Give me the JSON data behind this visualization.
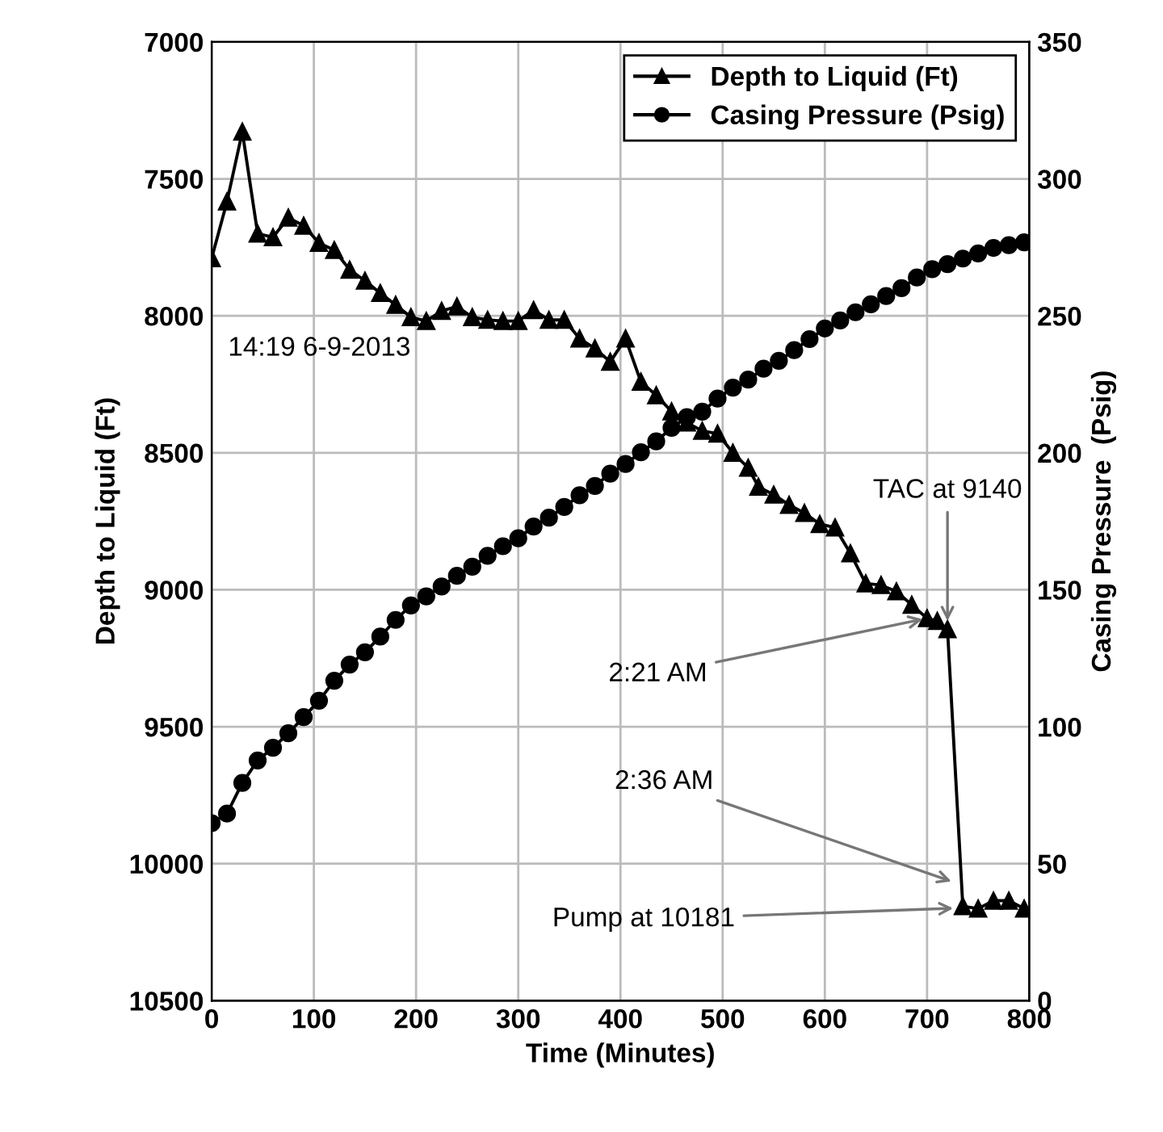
{
  "chart_data": {
    "type": "line",
    "xlabel": "Time (Minutes)",
    "ylabel": "Depth to Liquid (Ft)",
    "y2label": "Casing Pressure  (Psig)",
    "xlim": [
      0,
      800
    ],
    "xticks": [
      0,
      100,
      200,
      300,
      400,
      500,
      600,
      700,
      800
    ],
    "ylim": [
      10500,
      7000
    ],
    "yticks": [
      7000,
      7500,
      8000,
      8500,
      9000,
      9500,
      10000,
      10500
    ],
    "y2lim": [
      0,
      350
    ],
    "y2ticks": [
      0,
      50,
      100,
      150,
      200,
      250,
      300,
      350
    ],
    "grid": true,
    "legend": "top right",
    "line_style": "solid",
    "series": [
      {
        "name": "Depth to Liquid (Ft)",
        "color": "#000000",
        "marker": "triangle",
        "x": [
          0,
          15,
          30,
          45,
          60,
          75,
          90,
          105,
          120,
          135,
          150,
          165,
          180,
          195,
          210,
          225,
          240,
          255,
          270,
          285,
          300,
          315,
          330,
          345,
          360,
          375,
          390,
          405,
          420,
          435,
          450,
          465,
          480,
          495,
          510,
          525,
          535,
          550,
          565,
          580,
          595,
          610,
          625,
          640,
          655,
          670,
          685,
          700,
          710,
          720,
          735,
          750,
          765,
          780,
          795
        ],
        "values": [
          7790,
          7583,
          7328,
          7700,
          7713,
          7642,
          7671,
          7734,
          7760,
          7832,
          7872,
          7917,
          7960,
          8005,
          8019,
          7982,
          7966,
          8005,
          8015,
          8019,
          8019,
          7979,
          8015,
          8015,
          8083,
          8119,
          8168,
          8083,
          8241,
          8290,
          8349,
          8390,
          8420,
          8430,
          8500,
          8555,
          8624,
          8653,
          8690,
          8720,
          8760,
          8773,
          8867,
          8977,
          8983,
          9006,
          9055,
          9104,
          9114,
          9144,
          10155,
          10164,
          10135,
          10135,
          10164
        ]
      },
      {
        "name": "Casing Pressure (Psig)",
        "color": "#000000",
        "marker": "circle",
        "axis": "y2",
        "x": [
          0,
          15,
          30,
          45,
          60,
          75,
          90,
          105,
          120,
          135,
          150,
          165,
          180,
          195,
          210,
          225,
          240,
          255,
          270,
          285,
          300,
          315,
          330,
          345,
          360,
          375,
          390,
          405,
          420,
          435,
          450,
          465,
          480,
          495,
          510,
          525,
          540,
          555,
          570,
          585,
          600,
          615,
          630,
          645,
          660,
          675,
          690,
          705,
          720,
          735,
          750,
          765,
          780,
          795
        ],
        "values": [
          64.8,
          68.3,
          79.5,
          87.7,
          92.3,
          97.6,
          103.5,
          109.5,
          116.8,
          122.7,
          127.2,
          132.9,
          139,
          144.3,
          147.6,
          151.2,
          155.1,
          158.4,
          162.4,
          165.9,
          168.8,
          173.1,
          176.3,
          180.2,
          184.5,
          187.9,
          192.4,
          195.9,
          200.2,
          204.2,
          209.1,
          213,
          215,
          219.8,
          223.8,
          226.7,
          230.7,
          233.6,
          237.5,
          241.5,
          245.4,
          248.3,
          251.3,
          254.2,
          257.2,
          260.1,
          264,
          267,
          268.9,
          270.9,
          272.8,
          274.8,
          275.8,
          276.8
        ]
      }
    ],
    "annotations": [
      "14:19 6-9-2013",
      {
        "text": "TAC at 9140",
        "x": 720,
        "y": 9130
      },
      {
        "text": "2:21 AM",
        "x": 700,
        "y": 9104
      },
      {
        "text": "2:36 AM",
        "x": 728,
        "y": 10070
      },
      {
        "text": "Pump at 10181",
        "x": 730,
        "y": 10162
      }
    ]
  }
}
